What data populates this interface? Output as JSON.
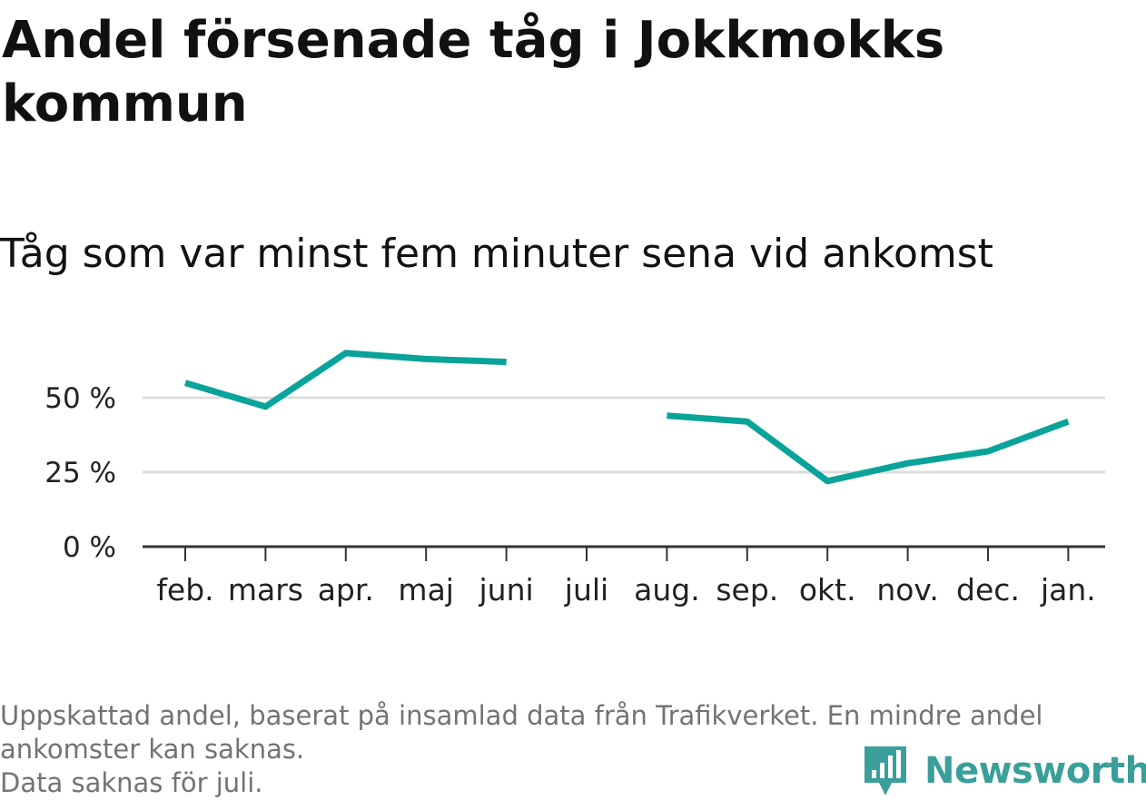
{
  "header": {
    "title": "Andel försenade tåg i Jokkmokks kommun",
    "subtitle": "Tåg som var minst fem minuter sena vid ankomst"
  },
  "footer": {
    "caption_lines": [
      "Uppskattad andel, baserat på insamlad data från Trafikverket. En mindre andel",
      "ankomster kan saknas.",
      "Data saknas för juli."
    ],
    "brand": "Newsworthy"
  },
  "colors": {
    "line": "#0aa39a",
    "grid": "#dddddd",
    "axis": "#333333",
    "brand": "#3a9f9a"
  },
  "chart_data": {
    "type": "line",
    "categories": [
      "feb.",
      "mars",
      "apr.",
      "maj",
      "juni",
      "juli",
      "aug.",
      "sep.",
      "okt.",
      "nov.",
      "dec.",
      "jan."
    ],
    "series": [
      {
        "values": [
          55,
          47,
          65,
          63,
          62,
          null,
          44,
          42,
          22,
          28,
          32,
          42
        ]
      }
    ],
    "yticks": [
      0,
      25,
      50
    ],
    "ytick_labels": [
      "0 %",
      "25 %",
      "50 %"
    ],
    "ylim": [
      0,
      70
    ],
    "grid": true,
    "legend": "none"
  }
}
